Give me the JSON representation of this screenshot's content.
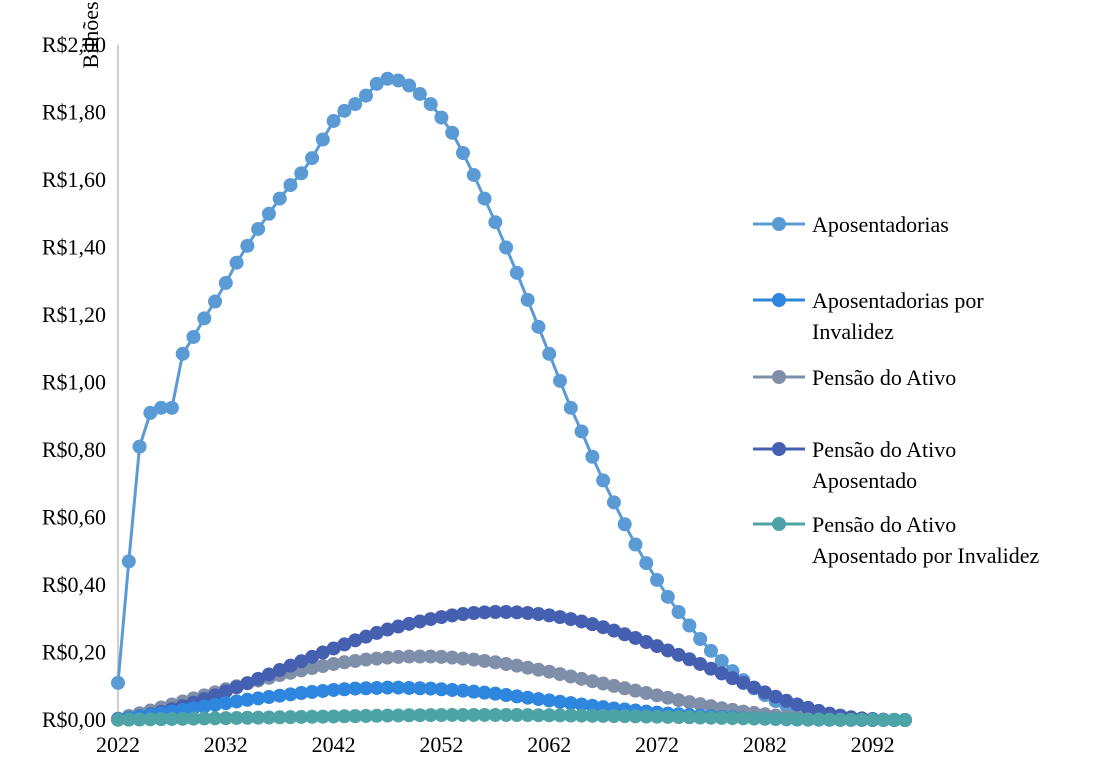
{
  "chart_data": {
    "type": "line",
    "title": "",
    "xlabel": "",
    "ylabel": "Bilhões",
    "ylim": [
      0,
      2.0
    ],
    "yticks": [
      0,
      0.2,
      0.4,
      0.6,
      0.8,
      1.0,
      1.2,
      1.4,
      1.6,
      1.8,
      2.0
    ],
    "ytick_labels": [
      "R$0,00",
      "R$0,20",
      "R$0,40",
      "R$0,60",
      "R$0,80",
      "R$1,00",
      "R$1,20",
      "R$1,40",
      "R$1,60",
      "R$1,80",
      "R$2,00"
    ],
    "xlim": [
      2022,
      2095
    ],
    "xticks": [
      2022,
      2032,
      2042,
      2052,
      2062,
      2072,
      2082,
      2092
    ],
    "xtick_labels": [
      "2022",
      "2032",
      "2042",
      "2052",
      "2062",
      "2072",
      "2082",
      "2092"
    ],
    "grid": false,
    "legend_position": "right",
    "x": [
      2022,
      2023,
      2024,
      2025,
      2026,
      2027,
      2028,
      2029,
      2030,
      2031,
      2032,
      2033,
      2034,
      2035,
      2036,
      2037,
      2038,
      2039,
      2040,
      2041,
      2042,
      2043,
      2044,
      2045,
      2046,
      2047,
      2048,
      2049,
      2050,
      2051,
      2052,
      2053,
      2054,
      2055,
      2056,
      2057,
      2058,
      2059,
      2060,
      2061,
      2062,
      2063,
      2064,
      2065,
      2066,
      2067,
      2068,
      2069,
      2070,
      2071,
      2072,
      2073,
      2074,
      2075,
      2076,
      2077,
      2078,
      2079,
      2080,
      2081,
      2082,
      2083,
      2084,
      2085,
      2086,
      2087,
      2088,
      2089,
      2090,
      2091,
      2092,
      2093,
      2094,
      2095
    ],
    "series": [
      {
        "name": "Aposentadorias",
        "color": "#5B9BD5",
        "values": [
          0.11,
          0.47,
          0.81,
          0.91,
          0.925,
          0.925,
          1.085,
          1.135,
          1.19,
          1.24,
          1.295,
          1.355,
          1.405,
          1.455,
          1.5,
          1.545,
          1.585,
          1.62,
          1.665,
          1.72,
          1.775,
          1.805,
          1.825,
          1.85,
          1.885,
          1.9,
          1.895,
          1.88,
          1.855,
          1.825,
          1.785,
          1.74,
          1.68,
          1.615,
          1.545,
          1.475,
          1.4,
          1.325,
          1.245,
          1.165,
          1.085,
          1.005,
          0.925,
          0.855,
          0.78,
          0.71,
          0.645,
          0.58,
          0.52,
          0.465,
          0.415,
          0.365,
          0.32,
          0.28,
          0.24,
          0.205,
          0.175,
          0.145,
          0.118,
          0.094,
          0.074,
          0.056,
          0.042,
          0.031,
          0.022,
          0.015,
          0.01,
          0.006,
          0.004,
          0.002,
          0.001,
          0.0005,
          0.0002,
          0.0
        ]
      },
      {
        "name": "Aposentadorias por Invalidez",
        "color": "#2E86DE",
        "values": [
          0.002,
          0.006,
          0.01,
          0.015,
          0.02,
          0.025,
          0.03,
          0.035,
          0.04,
          0.045,
          0.05,
          0.055,
          0.06,
          0.064,
          0.068,
          0.072,
          0.076,
          0.08,
          0.083,
          0.086,
          0.089,
          0.091,
          0.093,
          0.094,
          0.095,
          0.096,
          0.096,
          0.095,
          0.094,
          0.093,
          0.091,
          0.089,
          0.087,
          0.084,
          0.081,
          0.078,
          0.074,
          0.07,
          0.066,
          0.062,
          0.058,
          0.054,
          0.05,
          0.046,
          0.042,
          0.038,
          0.034,
          0.031,
          0.028,
          0.025,
          0.022,
          0.019,
          0.017,
          0.015,
          0.013,
          0.011,
          0.009,
          0.008,
          0.006,
          0.005,
          0.004,
          0.003,
          0.002,
          0.0015,
          0.001,
          0.0008,
          0.0005,
          0.0003,
          0.0002,
          0.0001,
          0.0,
          0.0,
          0.0,
          0.0
        ]
      },
      {
        "name": "Pensão do Ativo",
        "color": "#7F8FA9",
        "values": [
          0.004,
          0.012,
          0.02,
          0.028,
          0.037,
          0.046,
          0.055,
          0.064,
          0.073,
          0.082,
          0.091,
          0.1,
          0.109,
          0.117,
          0.125,
          0.133,
          0.14,
          0.147,
          0.154,
          0.16,
          0.166,
          0.171,
          0.175,
          0.179,
          0.182,
          0.185,
          0.187,
          0.188,
          0.188,
          0.188,
          0.187,
          0.185,
          0.182,
          0.179,
          0.175,
          0.171,
          0.166,
          0.161,
          0.155,
          0.149,
          0.143,
          0.136,
          0.129,
          0.122,
          0.115,
          0.108,
          0.101,
          0.094,
          0.087,
          0.08,
          0.073,
          0.066,
          0.059,
          0.053,
          0.047,
          0.041,
          0.035,
          0.03,
          0.025,
          0.021,
          0.017,
          0.013,
          0.01,
          0.008,
          0.006,
          0.004,
          0.003,
          0.002,
          0.001,
          0.0005,
          0.0002,
          0.0001,
          0.0,
          0.0
        ]
      },
      {
        "name": "Pensão do Ativo Aposentado",
        "color": "#4560B0",
        "values": [
          0.002,
          0.006,
          0.011,
          0.017,
          0.024,
          0.032,
          0.041,
          0.051,
          0.062,
          0.073,
          0.085,
          0.097,
          0.109,
          0.122,
          0.135,
          0.148,
          0.161,
          0.174,
          0.187,
          0.2,
          0.212,
          0.224,
          0.236,
          0.247,
          0.258,
          0.268,
          0.277,
          0.285,
          0.292,
          0.299,
          0.305,
          0.31,
          0.314,
          0.317,
          0.319,
          0.32,
          0.32,
          0.319,
          0.317,
          0.314,
          0.31,
          0.305,
          0.299,
          0.292,
          0.284,
          0.275,
          0.265,
          0.254,
          0.243,
          0.231,
          0.219,
          0.206,
          0.193,
          0.18,
          0.166,
          0.152,
          0.138,
          0.124,
          0.11,
          0.096,
          0.082,
          0.069,
          0.057,
          0.046,
          0.036,
          0.027,
          0.019,
          0.013,
          0.008,
          0.005,
          0.003,
          0.001,
          0.0005,
          0.0
        ]
      },
      {
        "name": "Pensão do Ativo Aposentado por Invalidez",
        "color": "#4EA3A6",
        "values": [
          0.0005,
          0.001,
          0.0015,
          0.002,
          0.0025,
          0.003,
          0.0035,
          0.004,
          0.0045,
          0.005,
          0.0055,
          0.006,
          0.0065,
          0.007,
          0.0075,
          0.008,
          0.0085,
          0.009,
          0.0095,
          0.01,
          0.0105,
          0.011,
          0.0115,
          0.012,
          0.0125,
          0.013,
          0.0135,
          0.014,
          0.0142,
          0.0145,
          0.0147,
          0.015,
          0.015,
          0.015,
          0.015,
          0.015,
          0.015,
          0.0148,
          0.0145,
          0.0142,
          0.014,
          0.0137,
          0.0133,
          0.013,
          0.0126,
          0.0122,
          0.0118,
          0.0113,
          0.0108,
          0.0103,
          0.0098,
          0.0092,
          0.0086,
          0.008,
          0.0074,
          0.0068,
          0.0062,
          0.0056,
          0.005,
          0.0044,
          0.0038,
          0.0032,
          0.0027,
          0.0022,
          0.0017,
          0.0013,
          0.001,
          0.0007,
          0.0005,
          0.0003,
          0.0002,
          0.0001,
          0.0,
          0.0
        ]
      }
    ],
    "legend_lines": [
      [
        "Aposentadorias"
      ],
      [
        "Aposentadorias por",
        "Invalidez"
      ],
      [
        "Pensão do Ativo"
      ],
      [
        "Pensão do Ativo",
        "Aposentado"
      ],
      [
        "Pensão do Ativo",
        "Aposentado por Invalidez"
      ]
    ]
  }
}
